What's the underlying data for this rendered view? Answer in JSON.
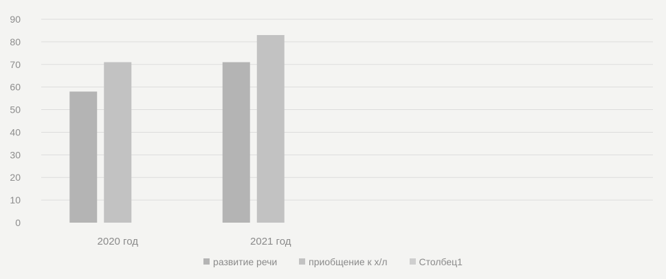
{
  "chart_data": {
    "type": "bar",
    "title": "",
    "xlabel": "",
    "ylabel": "",
    "categories": [
      "2020 год",
      "2021 год",
      "",
      ""
    ],
    "series": [
      {
        "name": "развитие речи",
        "values": [
          58,
          71,
          null,
          null
        ]
      },
      {
        "name": "приобщение к х/л",
        "values": [
          71,
          83,
          null,
          null
        ]
      },
      {
        "name": "Столбец1",
        "values": [
          null,
          null,
          null,
          null
        ]
      }
    ],
    "ylim": [
      0,
      90
    ],
    "yticks": [
      0,
      10,
      20,
      30,
      40,
      50,
      60,
      70,
      80,
      90
    ],
    "grid": true,
    "legend_position": "bottom",
    "colors": {
      "series": [
        "#b4b4b4",
        "#c2c2c2",
        "#cfcfcf"
      ],
      "grid": "#dcdcdc",
      "background": "#f4f4f2"
    }
  }
}
